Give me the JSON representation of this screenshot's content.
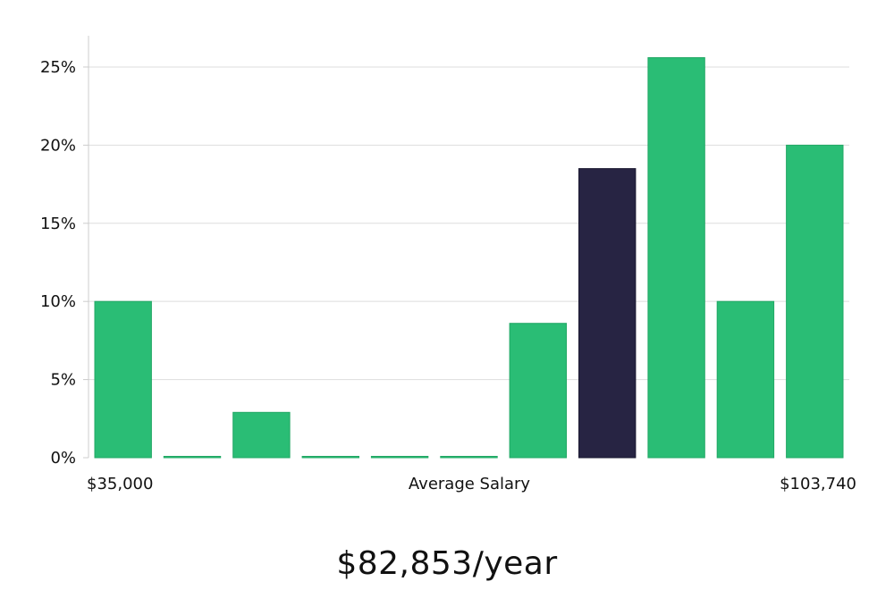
{
  "chart_data": {
    "type": "bar",
    "xlabel": "Average Salary",
    "x_min_label": "$35,000",
    "x_max_label": "$103,740",
    "ylim": [
      0,
      27
    ],
    "yticks": [
      "0%",
      "5%",
      "10%",
      "15%",
      "20%",
      "25%"
    ],
    "ytick_values": [
      0,
      5,
      10,
      15,
      20,
      25
    ],
    "values": [
      10,
      0,
      2.9,
      0,
      0,
      0,
      8.6,
      18.5,
      25.6,
      10,
      20
    ],
    "highlight_index": 7,
    "grid": true,
    "colors": {
      "bar": "#2abd75",
      "highlight": "#272443",
      "grid": "#dddddd",
      "axis": "#cccccc"
    }
  },
  "summary": "$82,853/year"
}
